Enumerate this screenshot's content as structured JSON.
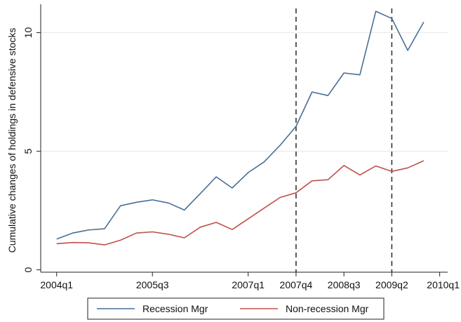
{
  "chart_data": {
    "type": "line",
    "title": "",
    "xlabel": "",
    "ylabel": "Cumulative changes of holdings in defensive stocks",
    "x_tick_labels": [
      "2004q1",
      "2005q3",
      "2007q1",
      "2007q4",
      "2008q3",
      "2009q2",
      "2010q1"
    ],
    "x_tick_index": [
      0,
      6,
      12,
      15,
      18,
      21,
      24
    ],
    "y_ticks": [
      0,
      5,
      10
    ],
    "ylim": [
      -0.1,
      11.2
    ],
    "xlim": [
      -1,
      24.5
    ],
    "grid": "horizontal",
    "vlines": [
      15,
      21
    ],
    "legend_position": "bottom",
    "x": [
      "2004q1",
      "2004q2",
      "2004q3",
      "2004q4",
      "2005q1",
      "2005q2",
      "2005q3",
      "2005q4",
      "2006q1",
      "2006q2",
      "2006q3",
      "2006q4",
      "2007q1",
      "2007q2",
      "2007q3",
      "2007q4",
      "2008q1",
      "2008q2",
      "2008q3",
      "2008q4",
      "2009q1",
      "2009q2",
      "2009q3",
      "2009q4"
    ],
    "series": [
      {
        "name": "Recession Mgr",
        "color": "#4a6f96",
        "values": [
          1.3,
          1.55,
          1.68,
          1.73,
          2.7,
          2.85,
          2.95,
          2.82,
          2.52,
          3.22,
          3.92,
          3.45,
          4.1,
          4.55,
          5.25,
          6.05,
          7.5,
          7.35,
          8.3,
          8.22,
          10.9,
          10.6,
          9.25,
          10.45
        ]
      },
      {
        "name": "Non-recession Mgr",
        "color": "#c0504d",
        "values": [
          1.1,
          1.15,
          1.14,
          1.05,
          1.25,
          1.55,
          1.6,
          1.5,
          1.35,
          1.8,
          2.0,
          1.7,
          2.15,
          2.6,
          3.05,
          3.25,
          3.75,
          3.8,
          4.4,
          4.0,
          4.38,
          4.15,
          4.3,
          4.6
        ]
      }
    ]
  }
}
